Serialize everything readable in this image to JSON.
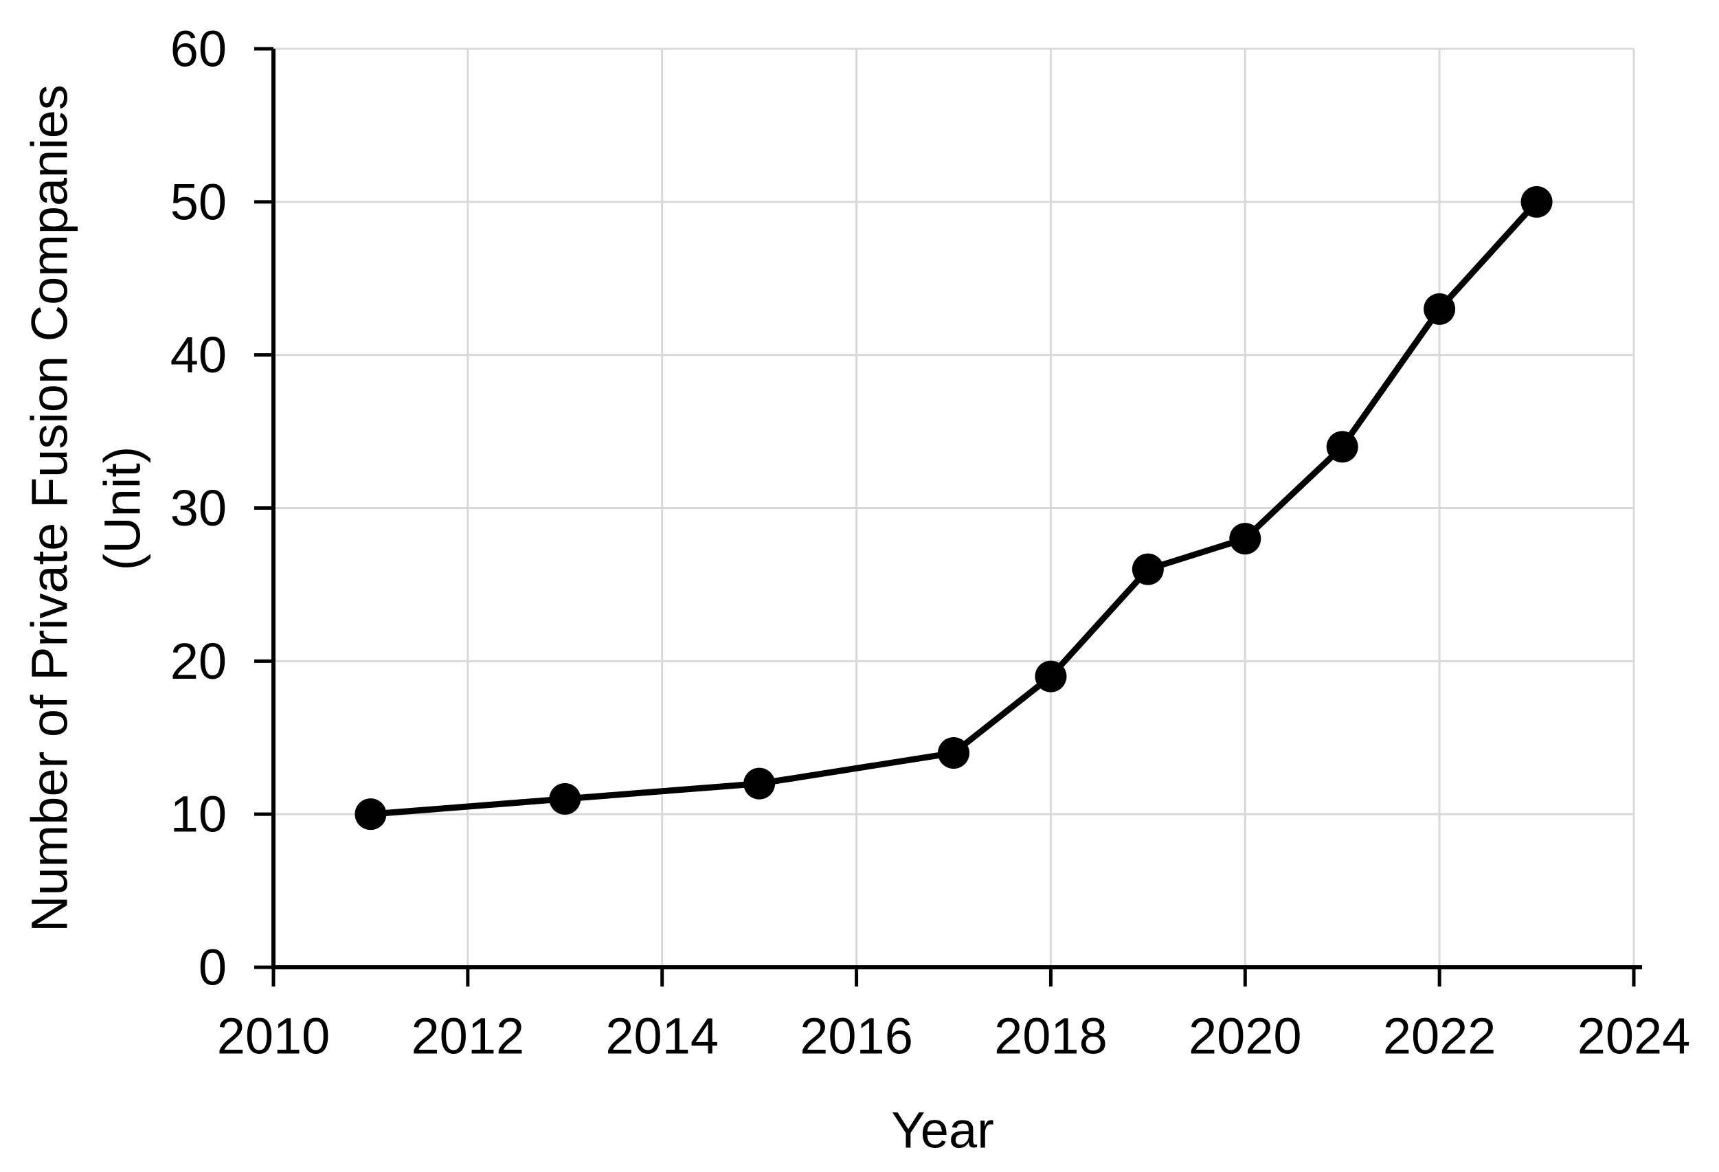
{
  "chart_data": {
    "type": "line",
    "title": "",
    "xlabel": "Year",
    "ylabel": "Number of Private Fusion Companies (Unit)",
    "ylabel_line1": "Number of Private Fusion Companies",
    "ylabel_line2": "(Unit)",
    "x": [
      2011,
      2013,
      2015,
      2017,
      2018,
      2019,
      2020,
      2021,
      2022,
      2023
    ],
    "values": [
      10,
      11,
      12,
      14,
      19,
      26,
      28,
      34,
      43,
      50
    ],
    "xlim": [
      2010,
      2024
    ],
    "ylim": [
      0,
      60
    ],
    "x_ticks": [
      2010,
      2012,
      2014,
      2016,
      2018,
      2020,
      2022,
      2024
    ],
    "y_ticks": [
      0,
      10,
      20,
      30,
      40,
      50,
      60
    ],
    "grid": true,
    "legend": "none",
    "line_color": "#000000",
    "marker": "circle",
    "marker_color": "#000000",
    "gridline_color": "#d9d9d9",
    "axis_color": "#000000",
    "background_color": "#ffffff"
  }
}
